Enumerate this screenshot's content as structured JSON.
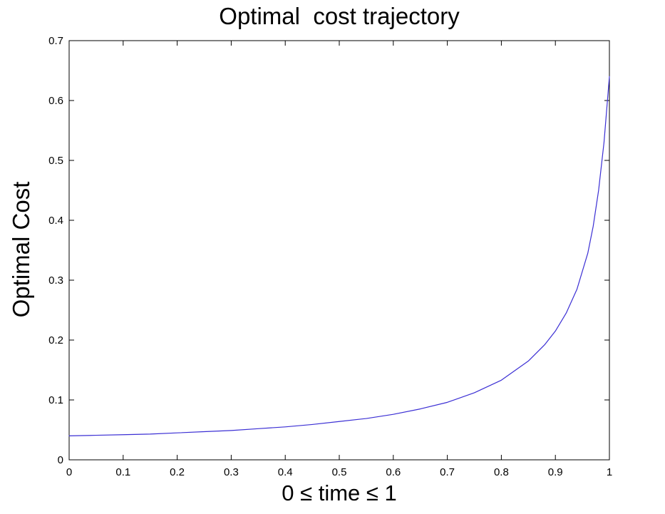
{
  "chart_data": {
    "type": "line",
    "title": "Optimal  cost trajectory",
    "xlabel": "0 ≤ time ≤ 1",
    "ylabel": "Optimal Cost",
    "xlim": [
      0,
      1
    ],
    "ylim": [
      0,
      0.7
    ],
    "x_ticks": [
      0,
      0.1,
      0.2,
      0.3,
      0.4,
      0.5,
      0.6,
      0.7,
      0.8,
      0.9,
      1
    ],
    "x_tick_labels": [
      "0",
      "0.1",
      "0.2",
      "0.3",
      "0.4",
      "0.5",
      "0.6",
      "0.7",
      "0.8",
      "0.9",
      "1"
    ],
    "y_ticks": [
      0,
      0.1,
      0.2,
      0.3,
      0.4,
      0.5,
      0.6,
      0.7
    ],
    "y_tick_labels": [
      "0",
      "0.1",
      "0.2",
      "0.3",
      "0.4",
      "0.5",
      "0.6",
      "0.7"
    ],
    "grid": false,
    "legend": "none",
    "series": [
      {
        "name": "optimal-cost-curve",
        "color": "#3b2fd4",
        "x": [
          0.0,
          0.05,
          0.1,
          0.15,
          0.2,
          0.25,
          0.3,
          0.35,
          0.4,
          0.45,
          0.5,
          0.55,
          0.6,
          0.65,
          0.7,
          0.75,
          0.8,
          0.85,
          0.88,
          0.9,
          0.92,
          0.94,
          0.96,
          0.97,
          0.98,
          0.99,
          1.0
        ],
        "y": [
          0.04,
          0.041,
          0.042,
          0.043,
          0.045,
          0.047,
          0.049,
          0.052,
          0.055,
          0.059,
          0.064,
          0.069,
          0.076,
          0.085,
          0.096,
          0.112,
          0.133,
          0.165,
          0.192,
          0.215,
          0.245,
          0.285,
          0.345,
          0.39,
          0.45,
          0.53,
          0.64
        ]
      }
    ]
  },
  "colors": {
    "curve": "#3b2fd4",
    "axis": "#000000",
    "background": "#ffffff"
  }
}
